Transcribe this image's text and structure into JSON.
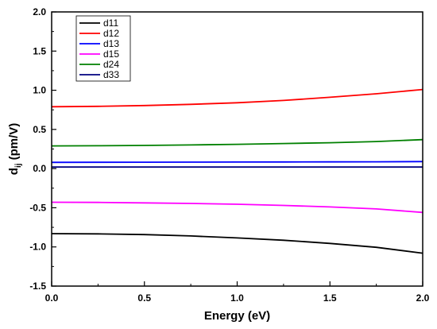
{
  "chart_data": {
    "type": "line",
    "title": "",
    "xlabel": "Energy (eV)",
    "ylabel": {
      "main": "d",
      "sub": "ij",
      "rest": " (pm/V)"
    },
    "xlim": [
      0.0,
      2.0
    ],
    "ylim": [
      -1.5,
      2.0
    ],
    "xticks": [
      "0.0",
      "0.5",
      "1.0",
      "1.5",
      "2.0"
    ],
    "yticks": [
      "-1.5",
      "-1.0",
      "-0.5",
      "0.0",
      "0.5",
      "1.0",
      "1.5",
      "2.0"
    ],
    "grid": false,
    "legend_position": "top-left",
    "x": [
      0.0,
      0.25,
      0.5,
      0.75,
      1.0,
      1.25,
      1.5,
      1.75,
      2.0
    ],
    "series": [
      {
        "name": "d11",
        "color": "#000000",
        "values": [
          -0.83,
          -0.833,
          -0.843,
          -0.86,
          -0.885,
          -0.915,
          -0.955,
          -1.005,
          -1.08
        ]
      },
      {
        "name": "d12",
        "color": "#ff0000",
        "values": [
          0.79,
          0.795,
          0.805,
          0.82,
          0.84,
          0.87,
          0.91,
          0.955,
          1.01
        ]
      },
      {
        "name": "d13",
        "color": "#0000ff",
        "values": [
          0.08,
          0.081,
          0.082,
          0.083,
          0.084,
          0.085,
          0.086,
          0.087,
          0.09
        ]
      },
      {
        "name": "d15",
        "color": "#ff00ff",
        "values": [
          -0.43,
          -0.432,
          -0.438,
          -0.445,
          -0.455,
          -0.47,
          -0.49,
          -0.515,
          -0.56
        ]
      },
      {
        "name": "d24",
        "color": "#008000",
        "values": [
          0.29,
          0.292,
          0.296,
          0.302,
          0.31,
          0.32,
          0.33,
          0.345,
          0.37
        ]
      },
      {
        "name": "d33",
        "color": "#000080",
        "values": [
          0.02,
          0.02,
          0.02,
          0.02,
          0.02,
          0.02,
          0.02,
          0.02,
          0.02
        ]
      }
    ]
  }
}
